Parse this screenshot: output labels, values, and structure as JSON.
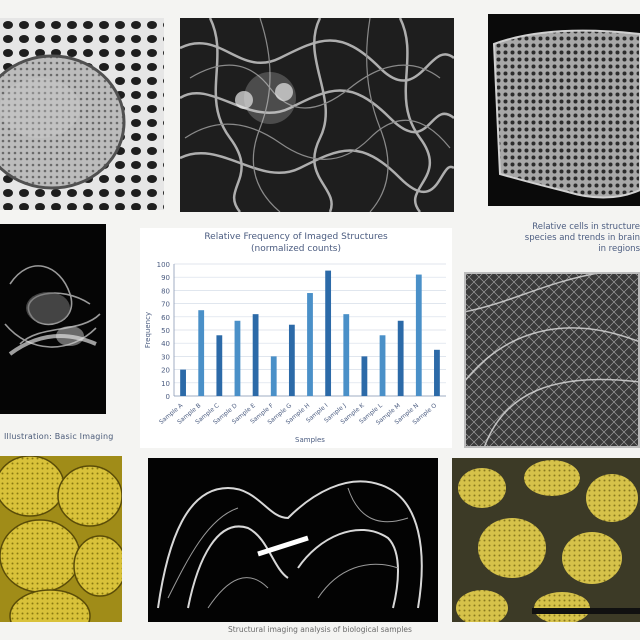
{
  "panels": {
    "top_left": {
      "icon": "cell-micrograph"
    },
    "top_center": {
      "icon": "fibrous-tissue-micrograph"
    },
    "top_right": {
      "icon": "porous-membrane-micrograph"
    },
    "middle_left": {
      "icon": "dark-tissue-micrograph",
      "caption": "Illustration: Basic Imaging"
    },
    "middle_right": {
      "icon": "fiber-network-micrograph"
    },
    "bottom_left": {
      "icon": "yellow-cell-cluster"
    },
    "bottom_center": {
      "icon": "organ-structure-render"
    },
    "bottom_right": {
      "icon": "yellow-tissue-micrograph"
    }
  },
  "side_note": "Relative cells in structure\nspecies and trends in brain\nin regions",
  "footer": "Structural imaging analysis of biological samples",
  "colors": {
    "bar": "#4a90c8",
    "bar_dark": "#2c6aa8",
    "accent_yellow": "#d9c23a"
  },
  "chart_data": {
    "type": "bar",
    "title": "Relative Frequency of Imaged Structures",
    "subtitle": "(normalized counts)",
    "xlabel": "Samples",
    "ylabel": "Frequency",
    "ylim": [
      0,
      100
    ],
    "yticks": [
      0,
      10,
      20,
      30,
      40,
      50,
      60,
      70,
      80,
      90,
      100
    ],
    "categories": [
      "Sample A",
      "Sample B",
      "Sample C",
      "Sample D",
      "Sample E",
      "Sample F",
      "Sample G",
      "Sample H",
      "Sample I",
      "Sample J",
      "Sample K",
      "Sample L",
      "Sample M",
      "Sample N",
      "Sample O"
    ],
    "values": [
      20,
      65,
      46,
      57,
      62,
      30,
      54,
      78,
      95,
      62,
      30,
      46,
      57,
      92,
      35
    ],
    "grid": true
  }
}
